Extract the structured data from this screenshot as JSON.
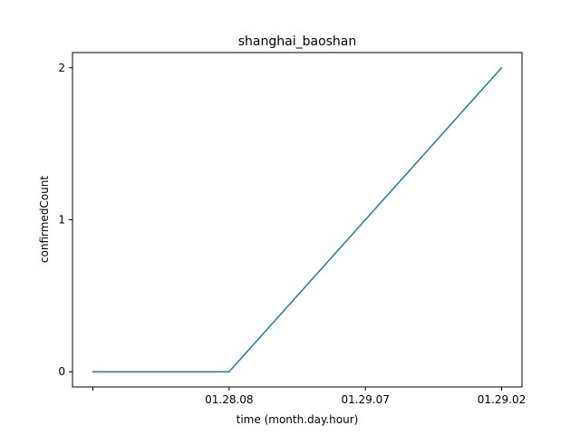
{
  "chart_data": {
    "type": "line",
    "title": "shanghai_baoshan",
    "xlabel": "time (month.day.hour)",
    "ylabel": "confirmedCount",
    "categories": [
      "",
      "01.28.08",
      "01.29.07",
      "01.29.02"
    ],
    "series": [
      {
        "values": [
          0,
          0,
          1,
          2
        ],
        "color": "#1f77b4"
      }
    ],
    "yticks": [
      0,
      1,
      2
    ],
    "ylim": [
      -0.1,
      2.1
    ],
    "grid": false,
    "legend": "none"
  }
}
